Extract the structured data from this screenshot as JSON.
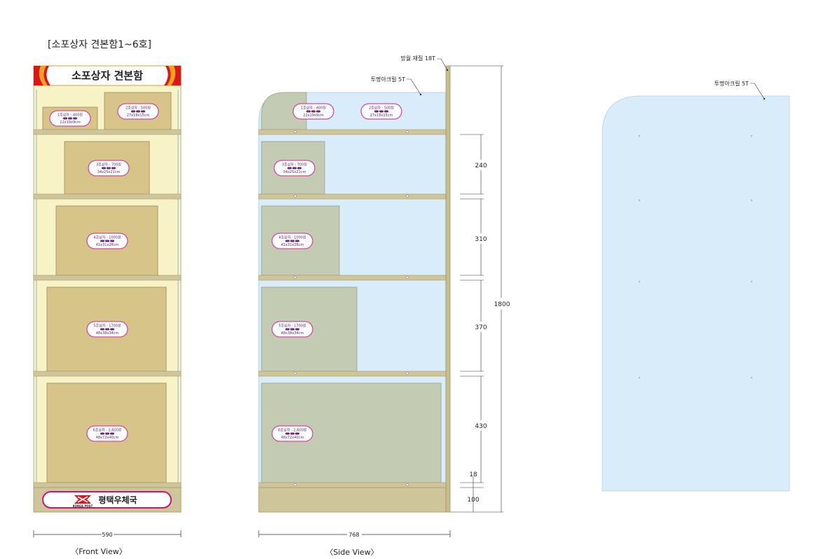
{
  "page_title": "[소포상자 견본함1~6호]",
  "front": {
    "header": "소포상자 견본함",
    "footer_brand": "평택우체국",
    "footer_logo_text": "KOREA POST",
    "width_label": "590",
    "caption": "〈Front View〉"
  },
  "side": {
    "acrylic_label": "투명아크릴 5T",
    "mdf_label": "망월 재질 18T",
    "depth_label": "768",
    "height_label": "1800",
    "dims": [
      "240",
      "310",
      "370",
      "430",
      "18",
      "100"
    ],
    "caption": "〈Side View〉"
  },
  "panel": {
    "acrylic_label": "투명아크릴 5T"
  },
  "boxes": [
    {
      "name": "1호상자 : 400원",
      "size": "22x19x9cm"
    },
    {
      "name": "2호상자 : 500원",
      "size": "27x18x15cm"
    },
    {
      "name": "3호상자 : 700원",
      "size": "34x25x21cm"
    },
    {
      "name": "4호상자 : 1000원",
      "size": "41x31x28cm"
    },
    {
      "name": "5호상자 : 1700원",
      "size": "48x38x34cm"
    },
    {
      "name": "6호상자 : 2,600원",
      "size": "48x72x40cm"
    }
  ],
  "colors": {
    "front_bg": "#f7f3c6",
    "shelf": "#cfc59a",
    "box": "#d6c489",
    "side_box": "#c3ccb2",
    "acrylic": "#d8ecfa",
    "badge_border": "#d54a9c",
    "header_red": "#d9161c",
    "pillar": "#c8bd8a"
  }
}
